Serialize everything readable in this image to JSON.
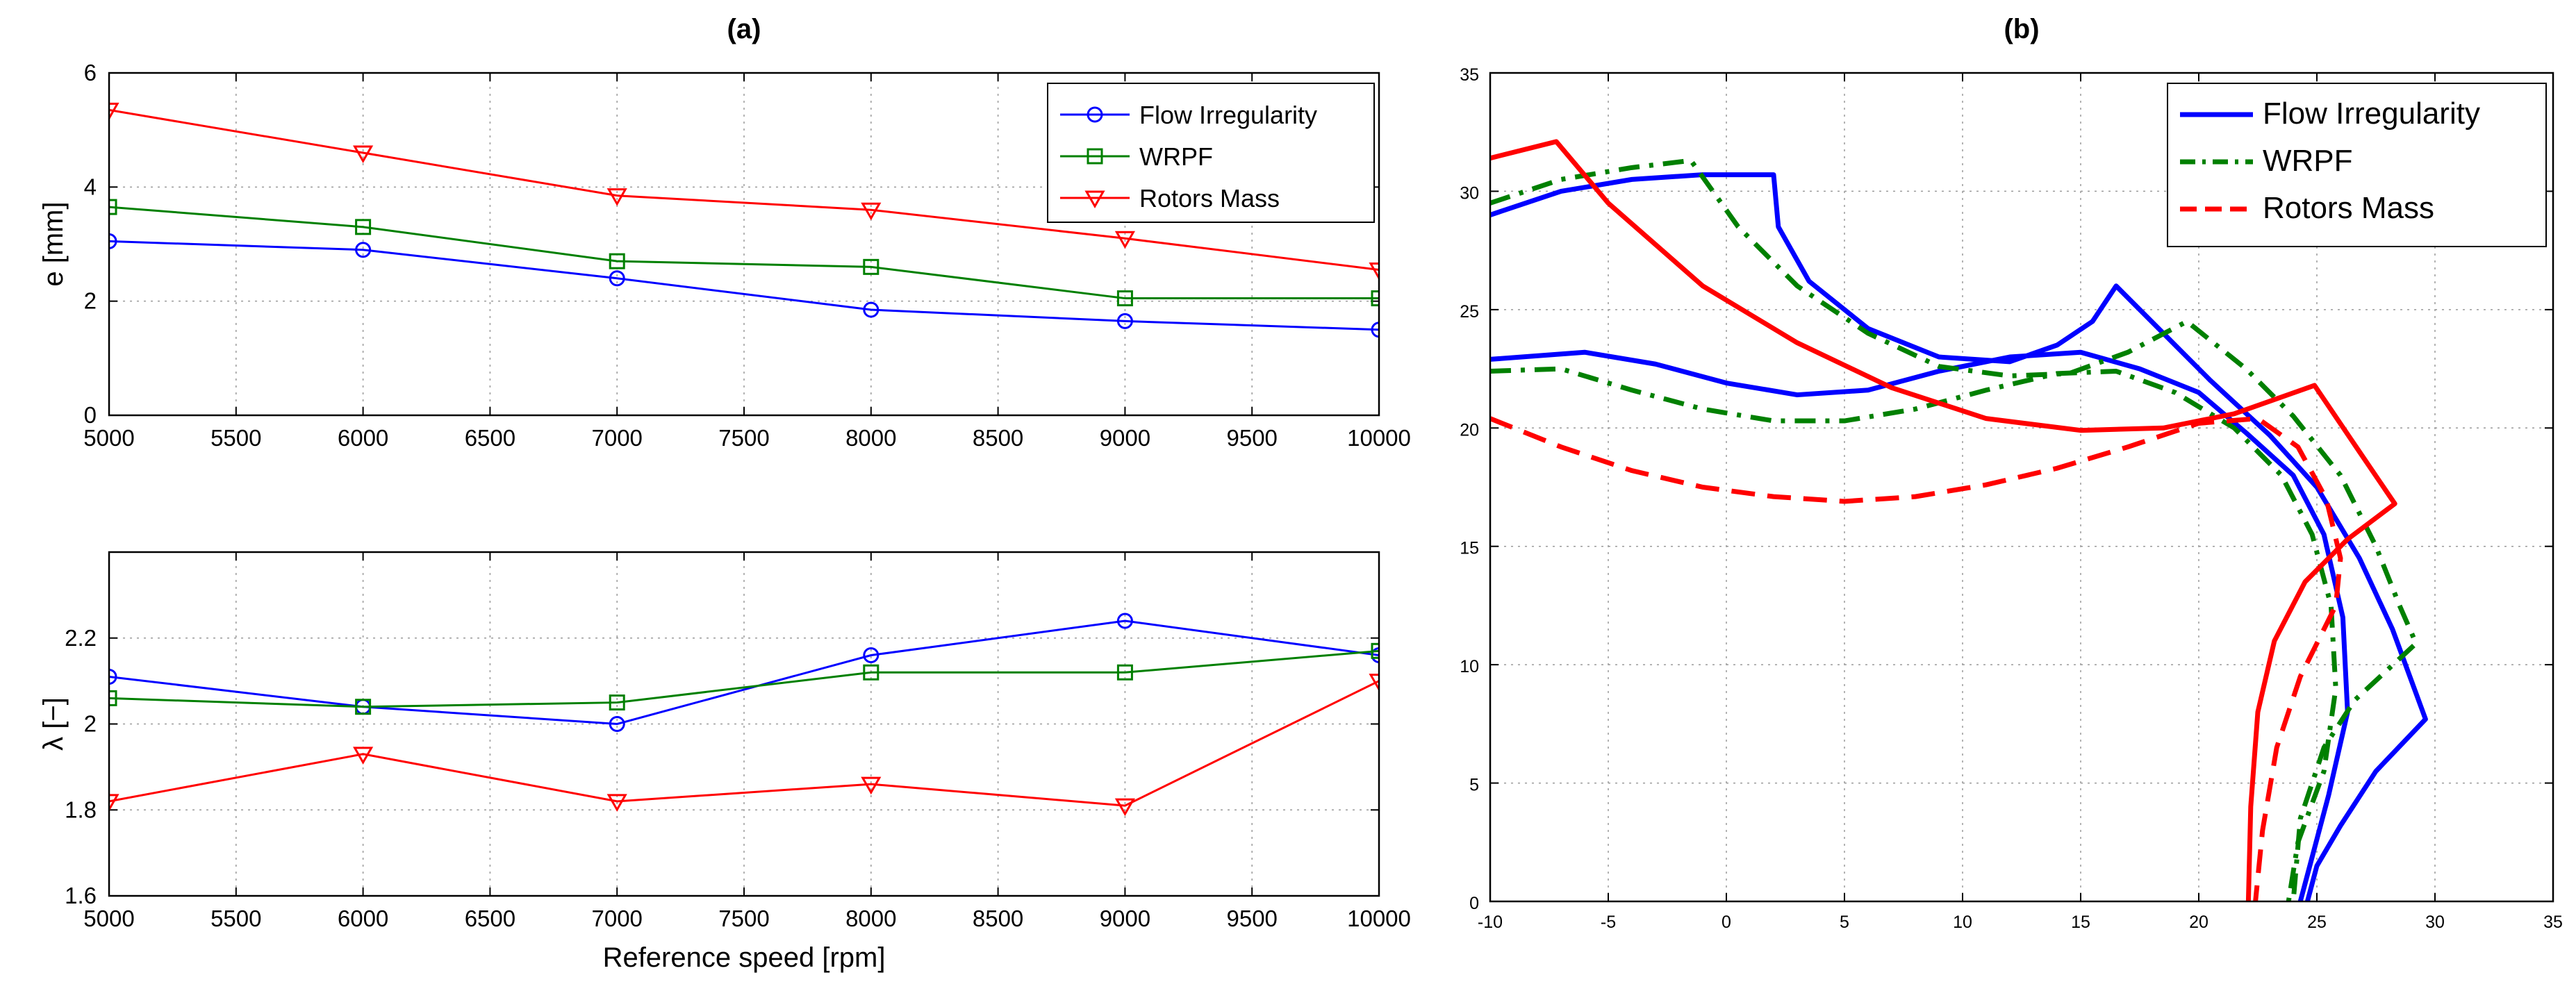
{
  "chart_data": [
    {
      "panel": "(a) top",
      "type": "line",
      "title": "(a)",
      "xlabel": "",
      "ylabel": "e [mm]",
      "x": [
        5000,
        6000,
        7000,
        8000,
        9000,
        10000
      ],
      "xlim": [
        5000,
        10000
      ],
      "ylim": [
        0,
        6
      ],
      "xticks": [
        "5000",
        "5500",
        "6000",
        "6500",
        "7000",
        "7500",
        "8000",
        "8500",
        "9000",
        "9500",
        "10000"
      ],
      "yticks": [
        "0",
        "2",
        "4",
        "6"
      ],
      "grid": true,
      "legend_position": "top-right",
      "series": [
        {
          "name": "Flow Irregularity",
          "color": "#0000ff",
          "marker": "circle",
          "values": [
            3.05,
            2.9,
            2.4,
            1.85,
            1.65,
            1.5
          ]
        },
        {
          "name": "WRPF",
          "color": "#008000",
          "marker": "square",
          "values": [
            3.65,
            3.3,
            2.7,
            2.6,
            2.05,
            2.05
          ]
        },
        {
          "name": "Rotors Mass",
          "color": "#ff0000",
          "marker": "triangle-down",
          "values": [
            5.35,
            4.6,
            3.85,
            3.6,
            3.1,
            2.55
          ]
        }
      ]
    },
    {
      "panel": "(a) bottom",
      "type": "line",
      "xlabel": "Reference speed [rpm]",
      "ylabel": "λ [−]",
      "x": [
        5000,
        6000,
        7000,
        8000,
        9000,
        10000
      ],
      "xlim": [
        5000,
        10000
      ],
      "ylim": [
        1.6,
        2.4
      ],
      "xticks": [
        "5000",
        "5500",
        "6000",
        "6500",
        "7000",
        "7500",
        "8000",
        "8500",
        "9000",
        "9500",
        "10000"
      ],
      "yticks": [
        "1.6",
        "1.8",
        "2",
        "2.2"
      ],
      "grid": true,
      "series": [
        {
          "name": "Flow Irregularity",
          "color": "#0000ff",
          "marker": "circle",
          "values": [
            2.11,
            2.04,
            2.0,
            2.16,
            2.24,
            2.16
          ]
        },
        {
          "name": "WRPF",
          "color": "#008000",
          "marker": "square",
          "values": [
            2.06,
            2.04,
            2.05,
            2.12,
            2.12,
            2.17
          ]
        },
        {
          "name": "Rotors Mass",
          "color": "#ff0000",
          "marker": "triangle-down",
          "values": [
            1.82,
            1.93,
            1.82,
            1.86,
            1.81,
            2.1
          ]
        }
      ]
    },
    {
      "panel": "(b)",
      "type": "line",
      "title": "(b)",
      "xlabel": "",
      "ylabel": "",
      "xlim": [
        -10,
        35
      ],
      "ylim": [
        0,
        35
      ],
      "xticks": [
        "-10",
        "-5",
        "0",
        "5",
        "10",
        "15",
        "20",
        "25",
        "30",
        "35"
      ],
      "yticks": [
        "0",
        "5",
        "10",
        "15",
        "20",
        "25",
        "30",
        "35"
      ],
      "grid": true,
      "legend_position": "top-right",
      "series": [
        {
          "name": "Flow Irregularity",
          "color": "#0000ff",
          "style": "solid",
          "paths": [
            [
              [
                -10,
                29
              ],
              [
                -7,
                30
              ],
              [
                -4,
                30.5
              ],
              [
                -1,
                30.7
              ],
              [
                2,
                30.7
              ],
              [
                2.2,
                28.5
              ],
              [
                3.5,
                26.2
              ],
              [
                6,
                24.2
              ],
              [
                9,
                23
              ],
              [
                12,
                22.8
              ],
              [
                14,
                23.5
              ],
              [
                15.5,
                24.5
              ],
              [
                16.5,
                26
              ],
              [
                18,
                24.5
              ],
              [
                20.5,
                22
              ],
              [
                23,
                19.7
              ],
              [
                25,
                17.5
              ],
              [
                26.8,
                14.5
              ],
              [
                28.2,
                11.5
              ],
              [
                29.6,
                7.7
              ],
              [
                27.5,
                5.5
              ],
              [
                26,
                3.2
              ],
              [
                25,
                1.5
              ],
              [
                24.6,
                0
              ]
            ],
            [
              [
                -10,
                22.9
              ],
              [
                -6,
                23.2
              ],
              [
                -3,
                22.7
              ],
              [
                0,
                21.9
              ],
              [
                3,
                21.4
              ],
              [
                6,
                21.6
              ],
              [
                9,
                22.4
              ],
              [
                12,
                23
              ],
              [
                15,
                23.2
              ],
              [
                17.5,
                22.5
              ],
              [
                20,
                21.5
              ],
              [
                22,
                19.8
              ],
              [
                24,
                18
              ],
              [
                25.3,
                15.5
              ],
              [
                26.1,
                12
              ],
              [
                26.3,
                8
              ],
              [
                25.5,
                4.5
              ],
              [
                24.3,
                0
              ]
            ]
          ]
        },
        {
          "name": "WRPF",
          "color": "#008000",
          "style": "dashdot",
          "paths": [
            [
              [
                -10,
                29.5
              ],
              [
                -7,
                30.5
              ],
              [
                -4,
                31
              ],
              [
                -1.5,
                31.3
              ],
              [
                0.5,
                28.5
              ],
              [
                3,
                26
              ],
              [
                6,
                24
              ],
              [
                9,
                22.6
              ],
              [
                12,
                22.2
              ],
              [
                14.5,
                22.3
              ],
              [
                17,
                23.2
              ],
              [
                19.5,
                24.5
              ],
              [
                22,
                22.5
              ],
              [
                24,
                20.5
              ],
              [
                26,
                18
              ],
              [
                27.5,
                15
              ],
              [
                28.5,
                12.5
              ],
              [
                29.2,
                10.9
              ],
              [
                26.6,
                8.5
              ],
              [
                25.3,
                6.5
              ],
              [
                24.3,
                3.5
              ],
              [
                24,
                0
              ]
            ],
            [
              [
                -10,
                22.4
              ],
              [
                -7,
                22.5
              ],
              [
                -4,
                21.6
              ],
              [
                -1,
                20.8
              ],
              [
                2,
                20.3
              ],
              [
                5,
                20.3
              ],
              [
                8,
                20.8
              ],
              [
                11,
                21.6
              ],
              [
                14,
                22.3
              ],
              [
                16.5,
                22.4
              ],
              [
                19,
                21.5
              ],
              [
                21.5,
                20
              ],
              [
                23.5,
                18
              ],
              [
                24.8,
                15.5
              ],
              [
                25.6,
                12.5
              ],
              [
                25.8,
                9
              ],
              [
                25.3,
                5.5
              ],
              [
                24.2,
                2.5
              ],
              [
                23.8,
                0
              ]
            ]
          ]
        },
        {
          "name": "Rotors Mass",
          "color": "#ff0000",
          "style": "solid",
          "paths": [
            [
              [
                -10,
                31.4
              ],
              [
                -7.2,
                32.1
              ],
              [
                -5,
                29.5
              ],
              [
                -1,
                26
              ],
              [
                3,
                23.6
              ],
              [
                7,
                21.7
              ],
              [
                11,
                20.4
              ],
              [
                15,
                19.9
              ],
              [
                18.5,
                20
              ],
              [
                21.5,
                20.6
              ],
              [
                24.9,
                21.8
              ],
              [
                26.8,
                19
              ],
              [
                28.3,
                16.8
              ],
              [
                26.3,
                15.3
              ],
              [
                24.5,
                13.5
              ],
              [
                23.2,
                11
              ],
              [
                22.5,
                8
              ],
              [
                22.2,
                4
              ],
              [
                22.1,
                0
              ]
            ]
          ]
        },
        {
          "name": "Rotors Mass",
          "color": "#ff0000",
          "style": "dashed",
          "legend": true,
          "paths": [
            [
              [
                -10,
                20.4
              ],
              [
                -7,
                19.2
              ],
              [
                -4,
                18.2
              ],
              [
                -1,
                17.5
              ],
              [
                2,
                17.1
              ],
              [
                5,
                16.9
              ],
              [
                8,
                17.1
              ],
              [
                11,
                17.6
              ],
              [
                14,
                18.3
              ],
              [
                17,
                19.2
              ],
              [
                20,
                20.2
              ],
              [
                22.5,
                20.4
              ],
              [
                24.2,
                19.2
              ],
              [
                25.4,
                17
              ],
              [
                26,
                14.5
              ],
              [
                25.8,
                12.5
              ],
              [
                24.3,
                9.5
              ],
              [
                23.3,
                6.5
              ],
              [
                22.7,
                3
              ],
              [
                22.4,
                0
              ]
            ]
          ]
        }
      ]
    }
  ]
}
